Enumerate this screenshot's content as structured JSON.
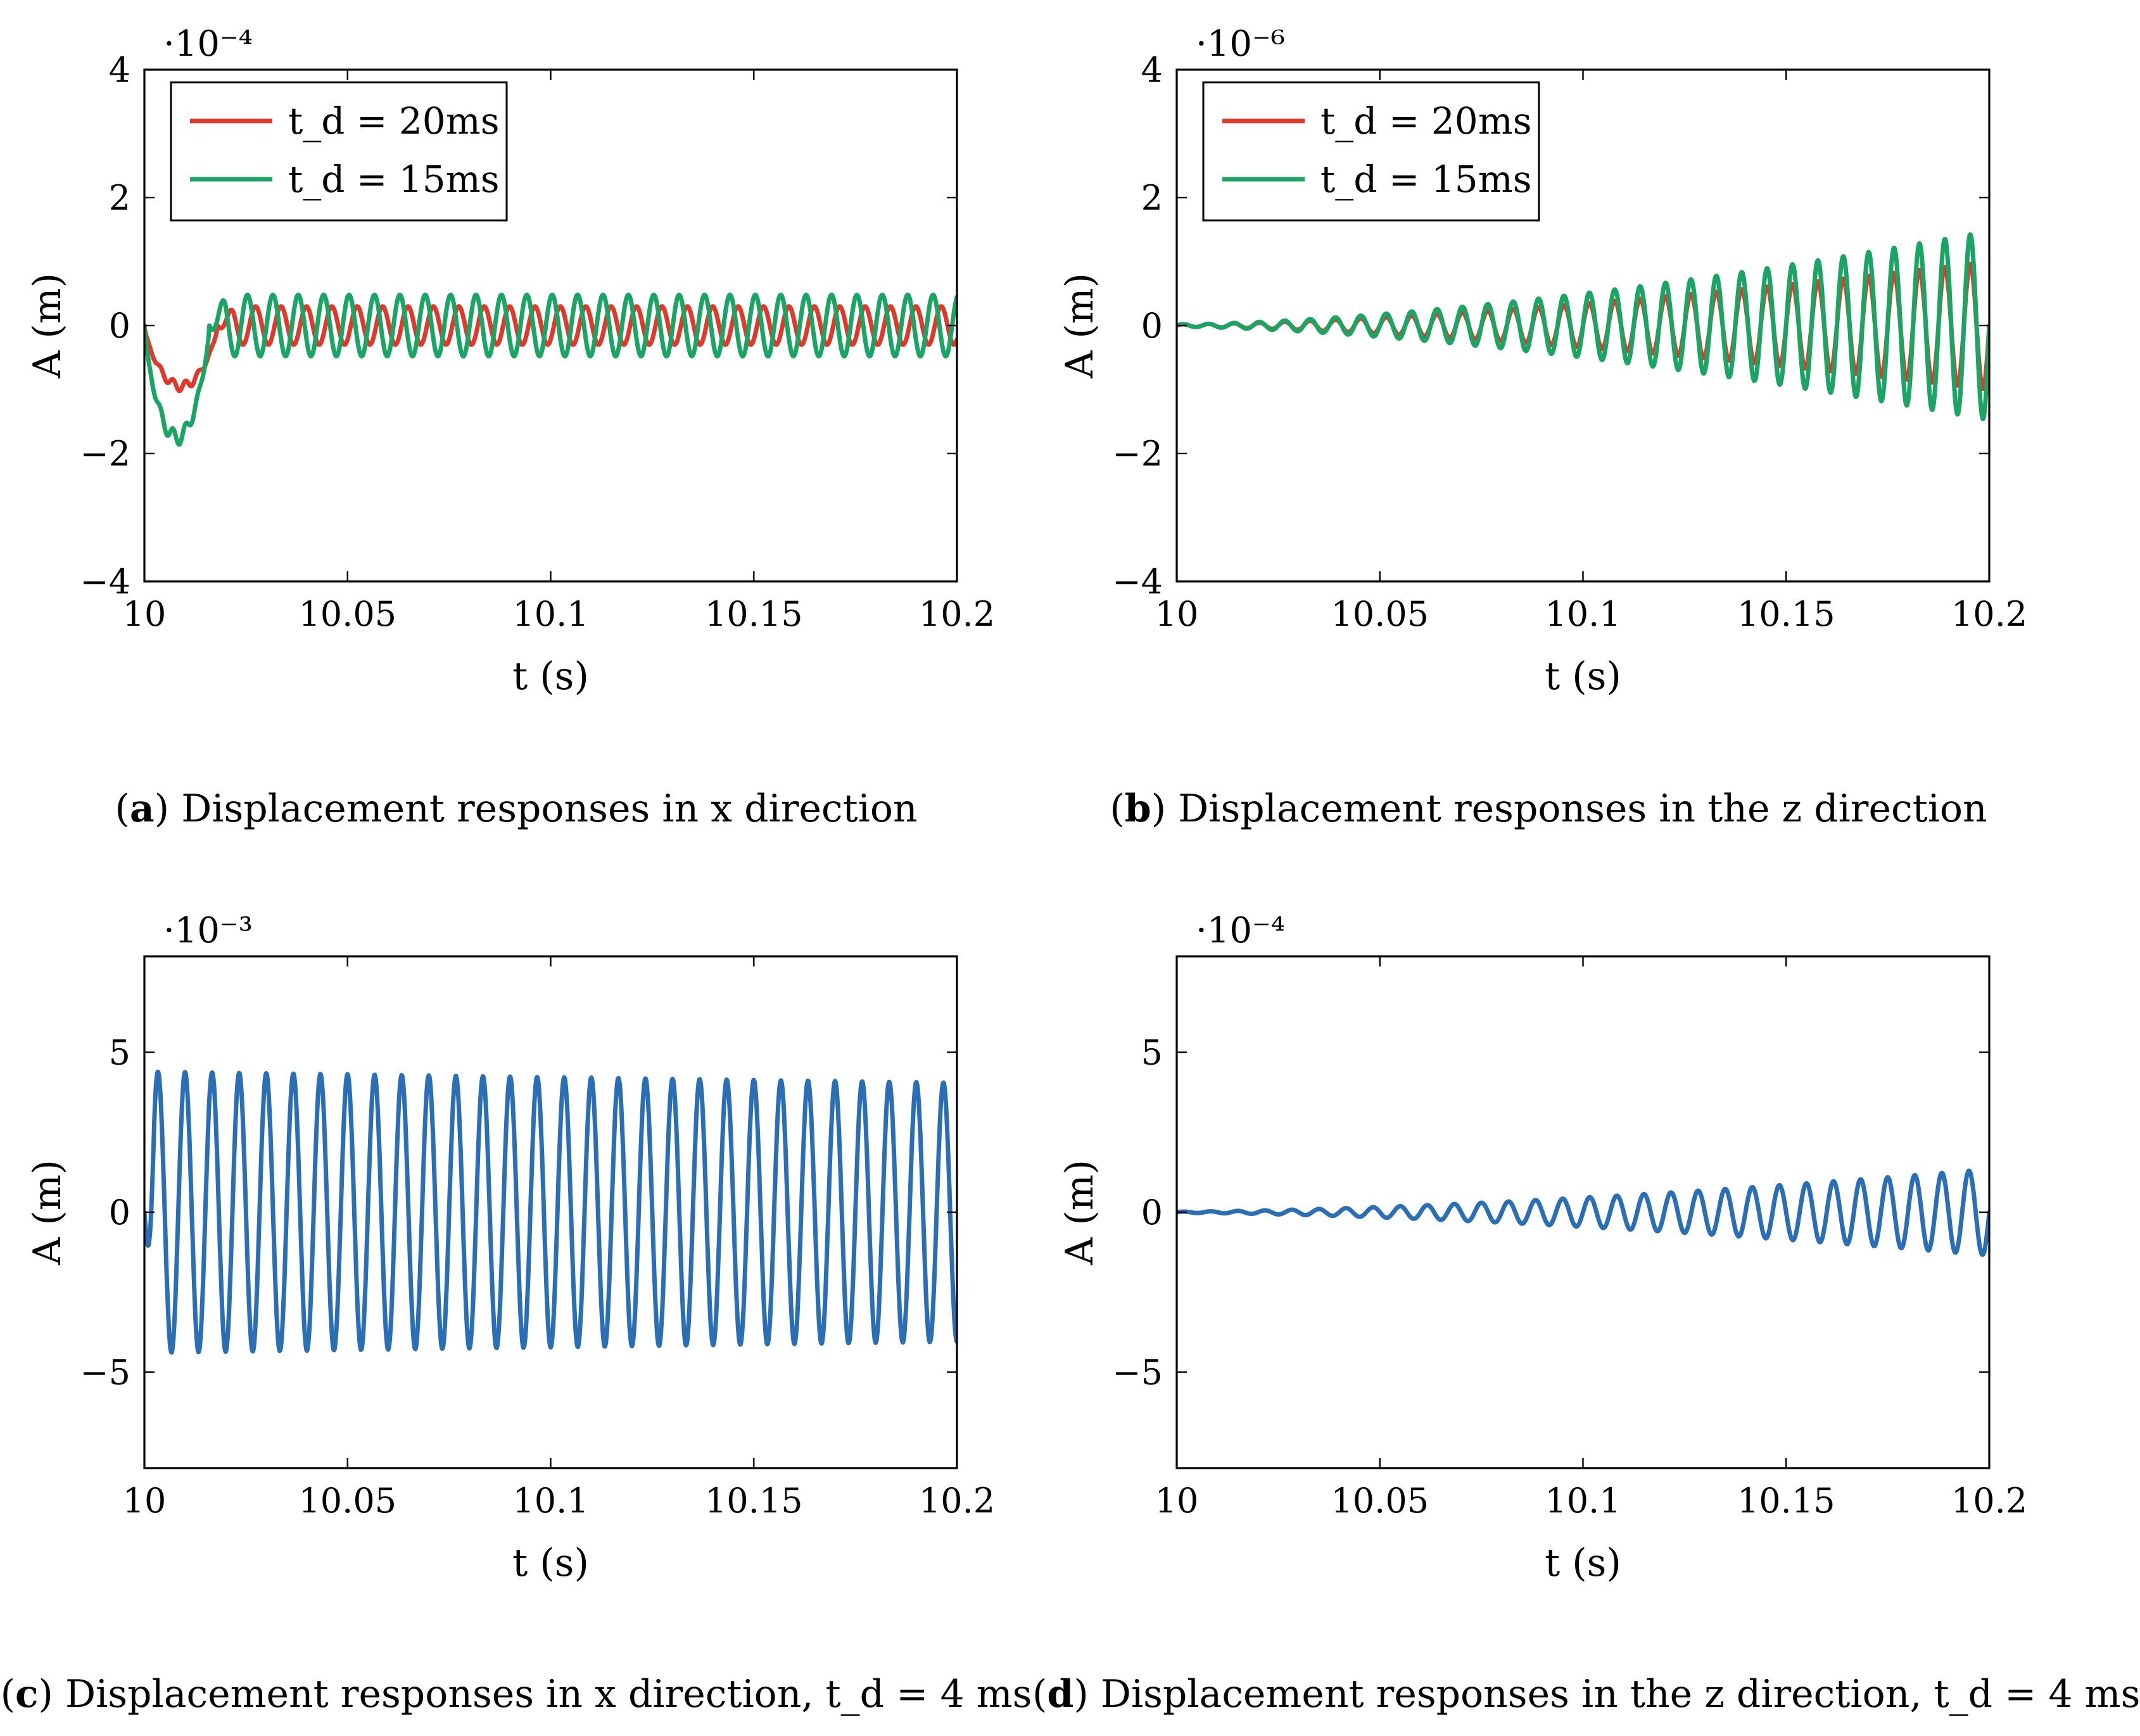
{
  "chart_data": [
    {
      "id": "a",
      "type": "line",
      "scale_label": "·10⁻⁴",
      "xlabel": "t (s)",
      "ylabel": "A (m)",
      "xlim": [
        10,
        10.2
      ],
      "ylim": [
        -4,
        4
      ],
      "x_ticks": [
        10,
        10.05,
        10.1,
        10.15,
        10.2
      ],
      "x_tick_labels": [
        "10",
        "10.05",
        "10.1",
        "10.15",
        "10.2"
      ],
      "y_ticks": [
        -4,
        -2,
        0,
        2,
        4
      ],
      "y_tick_labels": [
        "−4",
        "−2",
        "0",
        "2",
        "4"
      ],
      "legend": "top-left",
      "caption": {
        "letter": "a",
        "text": "Displacement responses in x direction"
      },
      "series": [
        {
          "name": "t_d = 20ms",
          "legend_label": "t_d = 20ms",
          "color": "#e0392b",
          "model": {
            "kind": "transient",
            "freq": 160,
            "amp": 0.3,
            "dip": -0.95,
            "settle": 10.018
          }
        },
        {
          "name": "t_d = 15ms",
          "legend_label": "t_d = 15ms",
          "color": "#1aa564",
          "model": {
            "kind": "transient",
            "freq": 160,
            "amp": 0.48,
            "dip": -1.75,
            "settle": 10.016
          }
        }
      ]
    },
    {
      "id": "b",
      "type": "line",
      "scale_label": "·10⁻⁶",
      "xlabel": "t (s)",
      "ylabel": "A (m)",
      "xlim": [
        10,
        10.2
      ],
      "ylim": [
        -4,
        4
      ],
      "x_ticks": [
        10,
        10.05,
        10.1,
        10.15,
        10.2
      ],
      "x_tick_labels": [
        "10",
        "10.05",
        "10.1",
        "10.15",
        "10.2"
      ],
      "y_ticks": [
        -4,
        -2,
        0,
        2,
        4
      ],
      "y_tick_labels": [
        "−4",
        "−2",
        "0",
        "2",
        "4"
      ],
      "legend": "top-left",
      "caption": {
        "letter": "b",
        "text": "Displacement responses in the z direction"
      },
      "series": [
        {
          "name": "t_d = 20ms",
          "legend_label": "t_d = 20ms",
          "color": "#e0392b",
          "model": {
            "kind": "growing",
            "freq": 160,
            "amp_start": 0.02,
            "amp_end": 1.0
          }
        },
        {
          "name": "t_d = 15ms",
          "legend_label": "t_d = 15ms",
          "color": "#1aa564",
          "model": {
            "kind": "growing",
            "freq": 160,
            "amp_start": 0.02,
            "amp_end": 1.48
          }
        }
      ]
    },
    {
      "id": "c",
      "type": "line",
      "scale_label": "·10⁻³",
      "xlabel": "t (s)",
      "ylabel": "A (m)",
      "xlim": [
        10,
        10.2
      ],
      "ylim": [
        -8,
        8
      ],
      "x_ticks": [
        10,
        10.05,
        10.1,
        10.15,
        10.2
      ],
      "x_tick_labels": [
        "10",
        "10.05",
        "10.1",
        "10.15",
        "10.2"
      ],
      "y_ticks": [
        -5,
        0,
        5
      ],
      "y_tick_labels": [
        "−5",
        "0",
        "5"
      ],
      "legend": "none",
      "caption": {
        "letter": "c",
        "text": "Displacement responses in x direction, t_d = 4 ms"
      },
      "series": [
        {
          "name": "t_d = 4 ms",
          "color": "#2a6fb5",
          "model": {
            "kind": "steady",
            "freq": 150,
            "amp_start": 4.4,
            "amp_end": 4.05
          }
        }
      ]
    },
    {
      "id": "d",
      "type": "line",
      "scale_label": "·10⁻⁴",
      "xlabel": "t (s)",
      "ylabel": "A (m)",
      "xlim": [
        10,
        10.2
      ],
      "ylim": [
        -8,
        8
      ],
      "x_ticks": [
        10,
        10.05,
        10.1,
        10.15,
        10.2
      ],
      "x_tick_labels": [
        "10",
        "10.05",
        "10.1",
        "10.15",
        "10.2"
      ],
      "y_ticks": [
        -5,
        0,
        5
      ],
      "y_tick_labels": [
        "−5",
        "0",
        "5"
      ],
      "legend": "none",
      "caption": {
        "letter": "d",
        "text": "Displacement responses in the z direction, t_d = 4 ms"
      },
      "series": [
        {
          "name": "t_d = 4 ms",
          "color": "#2a6fb5",
          "model": {
            "kind": "growing",
            "freq": 150,
            "amp_start": 0.02,
            "amp_end": 1.35
          }
        }
      ]
    }
  ]
}
